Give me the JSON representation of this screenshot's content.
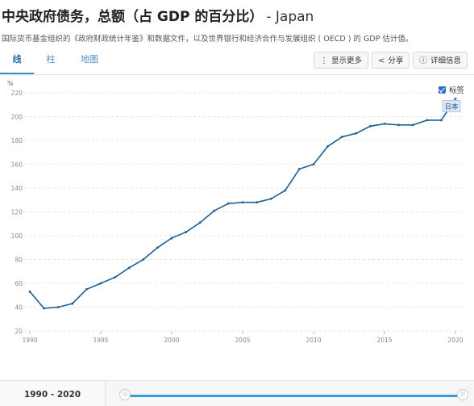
{
  "header": {
    "title": "中央政府债务，总额（占 GDP 的百分比）",
    "country": "- Japan",
    "subtitle": "国际货币基金组织的《政府财政统计年鉴》和数据文件，以及世界银行和经济合作与发展组织 ( OECD ) 的 GDP 估计值。"
  },
  "tabs": [
    {
      "id": "line",
      "label": "线",
      "active": true
    },
    {
      "id": "bar",
      "label": "柱",
      "active": false
    },
    {
      "id": "map",
      "label": "地图",
      "active": false
    }
  ],
  "toolbar": {
    "more": {
      "label": "显示更多",
      "icon": "more-vertical-icon"
    },
    "share": {
      "label": "分享",
      "icon": "share-icon"
    },
    "details": {
      "label": "详细信息",
      "icon": "info-icon"
    }
  },
  "legend": {
    "label": "标签",
    "checked": true
  },
  "range": {
    "label": "1990 - 2020",
    "start": 1990,
    "end": 2020
  },
  "colors": {
    "line": "#1f5f94",
    "accent": "#3c9ad6"
  },
  "chart_data": {
    "type": "line",
    "title": "中央政府债务，总额（占 GDP 的百分比）",
    "ylabel": "%",
    "xlabel": "",
    "xlim": [
      1990,
      2020
    ],
    "ylim": [
      20,
      220
    ],
    "yticks": [
      20,
      40,
      60,
      80,
      100,
      120,
      140,
      160,
      180,
      200,
      220
    ],
    "xticks": [
      1990,
      1995,
      2000,
      2005,
      2010,
      2015,
      2020
    ],
    "grid": "horizontal-dashed",
    "legend_position": "top-right",
    "series": [
      {
        "name": "日本",
        "x": [
          1990,
          1991,
          1992,
          1993,
          1994,
          1995,
          1996,
          1997,
          1998,
          1999,
          2000,
          2001,
          2002,
          2003,
          2004,
          2005,
          2006,
          2007,
          2008,
          2009,
          2010,
          2011,
          2012,
          2013,
          2014,
          2015,
          2016,
          2017,
          2018,
          2019,
          2020
        ],
        "values": [
          53,
          39,
          40,
          43,
          55,
          60,
          65,
          73,
          80,
          90,
          98,
          103,
          111,
          121,
          127,
          128,
          128,
          131,
          138,
          156,
          160,
          175,
          183,
          186,
          192,
          194,
          193,
          193,
          197,
          197,
          215
        ]
      }
    ]
  }
}
